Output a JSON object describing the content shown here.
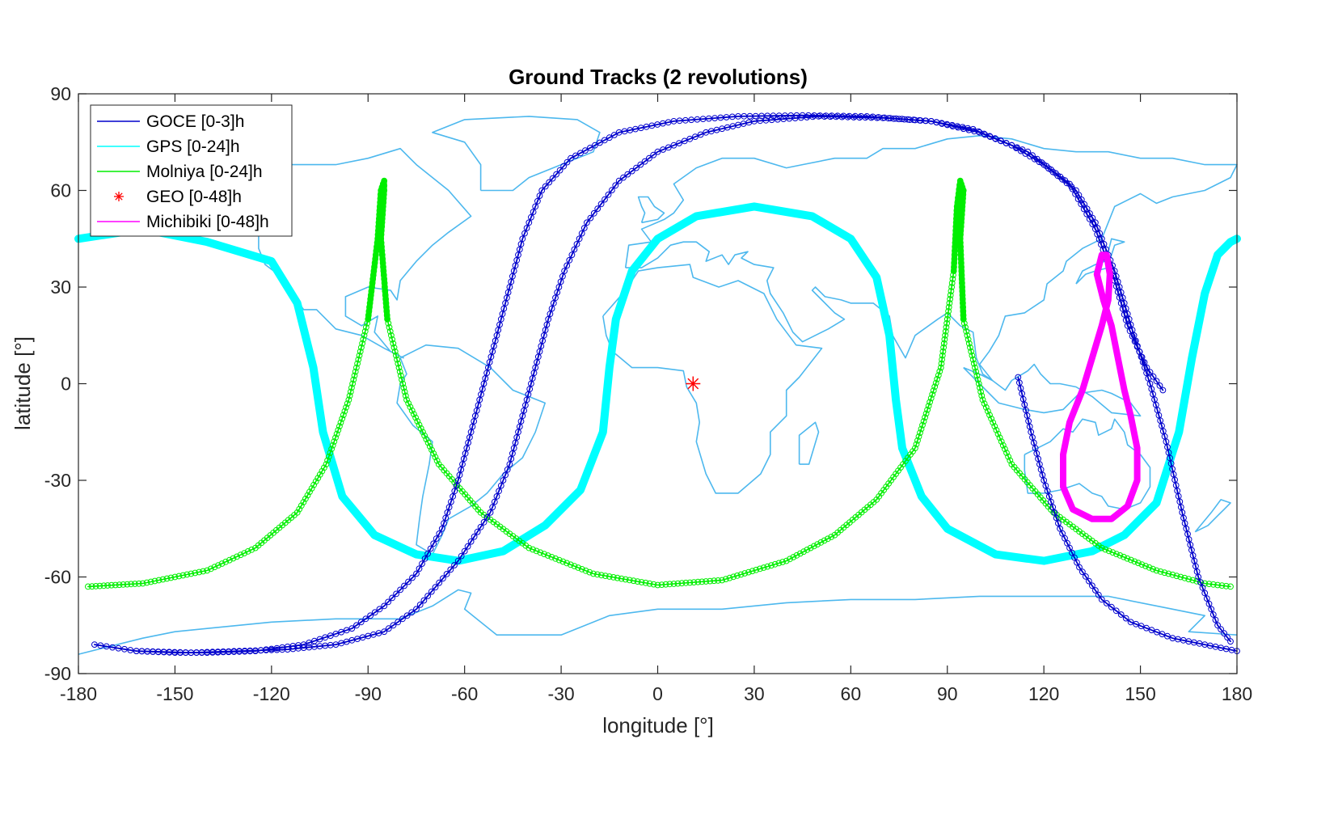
{
  "chart_data": {
    "type": "line",
    "title": "Ground Tracks (2 revolutions)",
    "xlabel": "longitude [°]",
    "ylabel": "latitude [°]",
    "xlim": [
      -180,
      180
    ],
    "ylim": [
      -90,
      90
    ],
    "xticks": [
      -180,
      -150,
      -120,
      -90,
      -60,
      -30,
      0,
      30,
      60,
      90,
      120,
      150,
      180
    ],
    "yticks": [
      90,
      60,
      30,
      0,
      -30,
      -60,
      -90
    ],
    "xtick_labels": [
      "-180",
      "-150",
      "-120",
      "-90",
      "-60",
      "-30",
      "0",
      "30",
      "60",
      "90",
      "120",
      "150",
      "180"
    ],
    "ytick_labels": [
      "90",
      "60",
      "30",
      "0",
      "-30",
      "-60",
      "-90"
    ],
    "grid": false,
    "legend_position": "top-left",
    "background_map": "world coastlines",
    "colors": {
      "goce": "#0000cc",
      "gps": "#00ffff",
      "molniya": "#00ee00",
      "geo": "#ff0000",
      "michibiki": "#ff00ff",
      "coastline": "#4db8ee"
    },
    "series": [
      {
        "name": "GOCE [0-3]h",
        "key": "goce",
        "marker": "circle",
        "segments": [
          [
            [
              -175,
              -81
            ],
            [
              -162,
              -83
            ],
            [
              -150,
              -83.5
            ],
            [
              -140,
              -83.5
            ],
            [
              -125,
              -83
            ],
            [
              -110,
              -81
            ],
            [
              -95,
              -76
            ],
            [
              -85,
              -69
            ],
            [
              -75,
              -59
            ],
            [
              -67,
              -45
            ],
            [
              -62,
              -30
            ],
            [
              -58,
              -15
            ],
            [
              -54,
              0
            ],
            [
              -50,
              15
            ],
            [
              -46,
              30
            ],
            [
              -42,
              45
            ],
            [
              -36,
              60
            ],
            [
              -27,
              70
            ],
            [
              -12,
              78
            ],
            [
              5,
              81.5
            ],
            [
              25,
              83
            ],
            [
              45,
              83.3
            ],
            [
              65,
              83
            ],
            [
              85,
              81.5
            ],
            [
              100,
              78
            ],
            [
              115,
              72
            ],
            [
              128,
              62
            ],
            [
              136,
              48
            ],
            [
              142,
              32
            ],
            [
              146,
              18
            ],
            [
              152,
              5
            ],
            [
              157,
              -2
            ]
          ],
          [
            [
              112,
              2
            ],
            [
              116,
              -15
            ],
            [
              120,
              -30
            ],
            [
              125,
              -45
            ],
            [
              131,
              -57
            ],
            [
              138,
              -67
            ],
            [
              147,
              -74
            ],
            [
              160,
              -79
            ],
            [
              175,
              -82
            ],
            [
              180,
              -83
            ]
          ],
          [
            [
              -162,
              -83
            ],
            [
              -145,
              -83.5
            ],
            [
              -130,
              -83
            ],
            [
              -115,
              -82.5
            ],
            [
              -100,
              -81
            ],
            [
              -85,
              -77
            ],
            [
              -75,
              -70
            ],
            [
              -62,
              -55
            ],
            [
              -52,
              -40
            ],
            [
              -46,
              -25
            ],
            [
              -42,
              -10
            ],
            [
              -38,
              5
            ],
            [
              -34,
              20
            ],
            [
              -29,
              35
            ],
            [
              -22,
              50
            ],
            [
              -12,
              63
            ],
            [
              0,
              72
            ],
            [
              15,
              78
            ],
            [
              30,
              81.5
            ],
            [
              50,
              83
            ],
            [
              70,
              82.5
            ],
            [
              85,
              81.5
            ],
            [
              98,
              79
            ],
            [
              110,
              74
            ],
            [
              120,
              68
            ],
            [
              130,
              60
            ],
            [
              136,
              50
            ],
            [
              142,
              35
            ],
            [
              148,
              15
            ],
            [
              153,
              0
            ],
            [
              158,
              -18
            ],
            [
              163,
              -40
            ],
            [
              168,
              -60
            ],
            [
              174,
              -75
            ],
            [
              178,
              -80
            ]
          ]
        ]
      },
      {
        "name": "GPS [0-24]h",
        "key": "gps",
        "marker": "none",
        "segments": [
          [
            [
              -180,
              45
            ],
            [
              -160,
              48
            ],
            [
              -140,
              44
            ],
            [
              -120,
              38
            ],
            [
              -112,
              25
            ],
            [
              -107,
              5
            ],
            [
              -104,
              -15
            ],
            [
              -98,
              -35
            ],
            [
              -88,
              -47
            ],
            [
              -75,
              -53
            ],
            [
              -62,
              -55
            ],
            [
              -48,
              -52
            ],
            [
              -35,
              -44
            ],
            [
              -24,
              -33
            ],
            [
              -17,
              -15
            ],
            [
              -15,
              5
            ],
            [
              -13,
              20
            ],
            [
              -8,
              35
            ],
            [
              0,
              45
            ],
            [
              12,
              52
            ],
            [
              30,
              55
            ],
            [
              48,
              52
            ],
            [
              60,
              45
            ],
            [
              68,
              33
            ],
            [
              72,
              15
            ],
            [
              74,
              -5
            ],
            [
              76,
              -20
            ],
            [
              82,
              -35
            ],
            [
              90,
              -45
            ],
            [
              105,
              -53
            ],
            [
              120,
              -55
            ],
            [
              135,
              -52
            ],
            [
              145,
              -47
            ],
            [
              155,
              -37
            ],
            [
              162,
              -15
            ],
            [
              166,
              8
            ],
            [
              170,
              28
            ],
            [
              174,
              40
            ],
            [
              178,
              44
            ],
            [
              180,
              45
            ]
          ]
        ]
      },
      {
        "name": "Molniya [0-24]h",
        "key": "molniya",
        "marker": "circle",
        "segments": [
          [
            [
              -177,
              -63
            ],
            [
              -160,
              -62
            ],
            [
              -140,
              -58
            ],
            [
              -125,
              -51
            ],
            [
              -112,
              -40
            ],
            [
              -103,
              -25
            ],
            [
              -96,
              -5
            ],
            [
              -90,
              20
            ],
            [
              -87,
              45
            ],
            [
              -86,
              60
            ],
            [
              -85,
              63
            ],
            [
              -85,
              60
            ],
            [
              -86,
              45
            ],
            [
              -84,
              20
            ],
            [
              -78,
              -5
            ],
            [
              -68,
              -25
            ],
            [
              -55,
              -40
            ],
            [
              -40,
              -51
            ],
            [
              -20,
              -59
            ],
            [
              0,
              -62.5
            ],
            [
              20,
              -61
            ],
            [
              40,
              -55
            ],
            [
              55,
              -47
            ],
            [
              68,
              -36
            ],
            [
              80,
              -20
            ],
            [
              88,
              5
            ],
            [
              92,
              35
            ],
            [
              93,
              55
            ],
            [
              94,
              63
            ],
            [
              95,
              60
            ],
            [
              94,
              45
            ],
            [
              95,
              20
            ],
            [
              101,
              -5
            ],
            [
              110,
              -25
            ],
            [
              123,
              -40
            ],
            [
              138,
              -51
            ],
            [
              155,
              -58
            ],
            [
              170,
              -62
            ],
            [
              178,
              -63
            ]
          ]
        ]
      },
      {
        "name": "GEO [0-48]h",
        "key": "geo",
        "marker": "asterisk",
        "points": [
          [
            11,
            0
          ]
        ]
      },
      {
        "name": "Michibiki [0-48]h",
        "key": "michibiki",
        "marker": "none",
        "segments": [
          [
            [
              136.5,
              34
            ],
            [
              138,
              40
            ],
            [
              139.5,
              40
            ],
            [
              140.5,
              34
            ],
            [
              140,
              26
            ],
            [
              138,
              18
            ],
            [
              135,
              8
            ],
            [
              132,
              -2
            ],
            [
              128,
              -12
            ],
            [
              126,
              -22
            ],
            [
              126,
              -32
            ],
            [
              129,
              -39
            ],
            [
              135,
              -42
            ],
            [
              141,
              -42
            ],
            [
              146,
              -38
            ],
            [
              149,
              -30
            ],
            [
              149,
              -20
            ],
            [
              147,
              -10
            ],
            [
              145,
              -2
            ],
            [
              143,
              8
            ],
            [
              141,
              18
            ],
            [
              138.5,
              26
            ],
            [
              136.5,
              34
            ]
          ]
        ]
      }
    ]
  }
}
